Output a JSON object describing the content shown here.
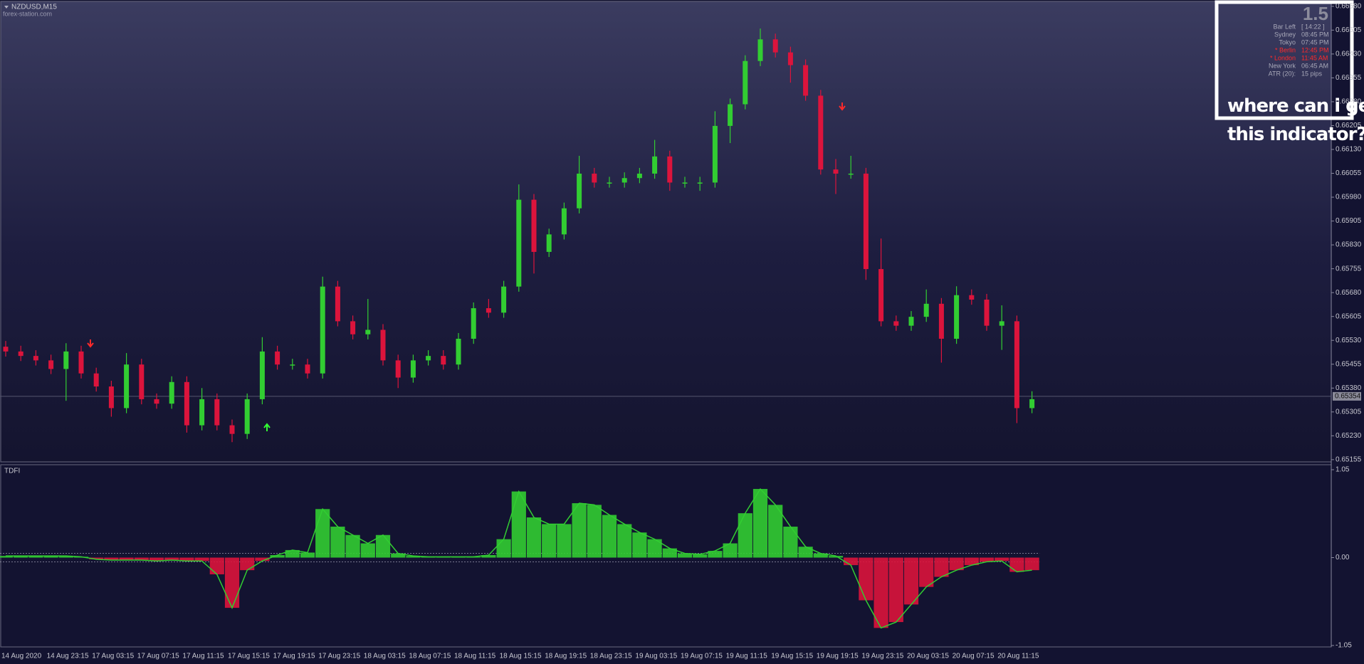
{
  "chart_data": [
    {
      "type": "candlestick",
      "title": "NZDUSD,M15",
      "watermark": "forex-station.com",
      "categories": [
        "14 Aug 2020",
        null,
        null,
        "14 Aug 23:15",
        null,
        null,
        "17 Aug 03:15",
        null,
        null,
        "17 Aug 07:15",
        null,
        null,
        "17 Aug 11:15",
        null,
        null,
        "17 Aug 15:15",
        null,
        null,
        "17 Aug 19:15",
        null,
        null,
        "17 Aug 23:15",
        null,
        null,
        "18 Aug 03:15",
        null,
        null,
        "18 Aug 07:15",
        null,
        null,
        "18 Aug 11:15",
        null,
        null,
        "18 Aug 15:15",
        null,
        null,
        "18 Aug 19:15",
        null,
        null,
        "18 Aug 23:15",
        null,
        null,
        "19 Aug 03:15",
        null,
        null,
        "19 Aug 07:15",
        null,
        null,
        "19 Aug 11:15",
        null,
        null,
        "19 Aug 15:15",
        null,
        null,
        "19 Aug 19:15",
        null,
        null,
        "19 Aug 23:15",
        null,
        null,
        "20 Aug 03:15",
        null,
        null,
        "20 Aug 07:15",
        null,
        null,
        "20 Aug 11:15",
        null,
        null
      ],
      "open": [
        0.6551,
        0.65495,
        0.65481,
        0.65467,
        0.6544,
        0.65495,
        0.65426,
        0.65385,
        0.65317,
        0.65454,
        0.65345,
        0.65331,
        0.65399,
        0.65263,
        0.65345,
        0.65263,
        0.65236,
        0.65345,
        0.65495,
        0.65454,
        0.65454,
        0.65426,
        0.65699,
        0.6559,
        0.65549,
        0.65563,
        0.65467,
        0.65413,
        0.65467,
        0.65481,
        0.65454,
        0.65535,
        0.65631,
        0.65617,
        0.65699,
        0.65972,
        0.65808,
        0.65863,
        0.65945,
        0.66054,
        0.66026,
        0.66026,
        0.6604,
        0.66054,
        0.66108,
        0.66026,
        0.66026,
        0.66026,
        0.66204,
        0.66272,
        0.66408,
        0.66476,
        0.66435,
        0.66395,
        0.66299,
        0.66067,
        0.66054,
        0.66054,
        0.65754,
        0.6559,
        0.65576,
        0.65604,
        0.65645,
        0.65535,
        0.65672,
        0.65658,
        0.65576,
        0.6559,
        0.65317
      ],
      "high": [
        0.65528,
        0.65513,
        0.65499,
        0.65485,
        0.65521,
        0.65513,
        0.65444,
        0.65403,
        0.6549,
        0.65472,
        0.65363,
        0.65417,
        0.65417,
        0.6538,
        0.65363,
        0.65281,
        0.65363,
        0.6554,
        0.65513,
        0.65472,
        0.65472,
        0.6573,
        0.65717,
        0.65608,
        0.6566,
        0.65581,
        0.65485,
        0.65485,
        0.65499,
        0.65499,
        0.65553,
        0.65649,
        0.6566,
        0.65717,
        0.6602,
        0.6599,
        0.65881,
        0.65963,
        0.6611,
        0.66072,
        0.66044,
        0.66058,
        0.66072,
        0.6616,
        0.66126,
        0.66044,
        0.66044,
        0.6625,
        0.6629,
        0.66426,
        0.6651,
        0.66494,
        0.66453,
        0.66413,
        0.66317,
        0.661,
        0.6611,
        0.66072,
        0.6585,
        0.65608,
        0.65622,
        0.6569,
        0.65663,
        0.657,
        0.6569,
        0.65676,
        0.6564,
        0.65608,
        0.6537
      ],
      "low": [
        0.65479,
        0.65465,
        0.65451,
        0.65424,
        0.6534,
        0.6541,
        0.65369,
        0.6529,
        0.65301,
        0.65329,
        0.65315,
        0.65315,
        0.6524,
        0.65247,
        0.65247,
        0.6521,
        0.6522,
        0.65329,
        0.65438,
        0.65438,
        0.6541,
        0.6541,
        0.65574,
        0.65533,
        0.65533,
        0.65451,
        0.6538,
        0.65397,
        0.65451,
        0.65438,
        0.65438,
        0.65519,
        0.65601,
        0.65601,
        0.65683,
        0.6574,
        0.65792,
        0.65847,
        0.65929,
        0.6601,
        0.6601,
        0.6601,
        0.66024,
        0.66038,
        0.66,
        0.6601,
        0.66,
        0.6601,
        0.6615,
        0.66256,
        0.66392,
        0.66419,
        0.6634,
        0.66283,
        0.66051,
        0.6599,
        0.66038,
        0.6572,
        0.65574,
        0.6556,
        0.6556,
        0.65588,
        0.6546,
        0.65519,
        0.65642,
        0.6556,
        0.655,
        0.6527,
        0.65301
      ],
      "close": [
        0.65495,
        0.65481,
        0.65467,
        0.6544,
        0.65495,
        0.65426,
        0.65385,
        0.65317,
        0.65454,
        0.65345,
        0.65331,
        0.65399,
        0.65263,
        0.65345,
        0.65263,
        0.65236,
        0.65345,
        0.65495,
        0.65454,
        0.65454,
        0.65426,
        0.65699,
        0.6559,
        0.65549,
        0.65563,
        0.65467,
        0.65413,
        0.65467,
        0.65481,
        0.65454,
        0.65535,
        0.65631,
        0.65617,
        0.65699,
        0.65972,
        0.65808,
        0.65863,
        0.65945,
        0.66054,
        0.66026,
        0.66026,
        0.6604,
        0.66054,
        0.66108,
        0.66026,
        0.66026,
        0.66026,
        0.66204,
        0.66272,
        0.66408,
        0.66476,
        0.66435,
        0.66395,
        0.66299,
        0.66067,
        0.66054,
        0.66054,
        0.65754,
        0.6559,
        0.65576,
        0.65604,
        0.65645,
        0.65535,
        0.65672,
        0.65658,
        0.65576,
        0.6559,
        0.65317,
        0.65345
      ],
      "up_color": "#32cd32",
      "down_color": "#dc143c",
      "ylim": [
        0.65148,
        0.66593
      ],
      "yticks": [
        0.65155,
        {
          "value": 0.6523,
          "label": "0.65230"
        },
        0.65305,
        {
          "value": 0.6538,
          "label": "0.65380"
        },
        0.65455,
        {
          "value": 0.6553,
          "label": "0.65530"
        },
        0.65605,
        {
          "value": 0.6568,
          "label": "0.65680"
        },
        0.65755,
        {
          "value": 0.6583,
          "label": "0.65830"
        },
        0.65905,
        {
          "value": 0.6598,
          "label": "0.65980"
        },
        0.66055,
        {
          "value": 0.6613,
          "label": "0.66130"
        },
        0.66205,
        {
          "value": 0.6628,
          "label": "0.66280"
        },
        0.66355,
        {
          "value": 0.6643,
          "label": "0.66430"
        },
        0.66505,
        {
          "value": 0.6658,
          "label": "0.66580"
        }
      ],
      "last_price": 0.65354,
      "grid": false
    },
    {
      "type": "indicator",
      "title": "TDFI",
      "values": [
        0.02,
        0.02,
        0.02,
        0.02,
        0.02,
        0.01,
        -0.02,
        -0.03,
        -0.03,
        -0.03,
        -0.04,
        -0.03,
        -0.04,
        -0.04,
        -0.2,
        -0.6,
        -0.15,
        -0.04,
        0.03,
        0.09,
        0.06,
        0.58,
        0.37,
        0.27,
        0.17,
        0.27,
        0.05,
        0.02,
        0.01,
        0.01,
        0.01,
        0.01,
        0.03,
        0.22,
        0.79,
        0.48,
        0.4,
        0.4,
        0.65,
        0.63,
        0.51,
        0.4,
        0.3,
        0.22,
        0.11,
        0.05,
        0.04,
        0.08,
        0.17,
        0.53,
        0.82,
        0.63,
        0.37,
        0.13,
        0.05,
        0.02,
        -0.09,
        -0.51,
        -0.84,
        -0.77,
        -0.56,
        -0.35,
        -0.23,
        -0.15,
        -0.09,
        -0.05,
        -0.04,
        -0.17,
        -0.15
      ],
      "pos_color": "#32cd32",
      "neg_color": "#dc143c",
      "ylim": [
        -1.05,
        1.05
      ],
      "yticks": [
        1.05,
        {
          "value": 0,
          "label": "0.00"
        },
        -1.05
      ],
      "levels": [
        0.05,
        -0.05
      ]
    }
  ],
  "info_panel": {
    "big": "1.5",
    "rows": [
      [
        "Bar Left",
        "[ 14:22 ]"
      ],
      [
        "Sydney",
        "08:45 PM"
      ],
      [
        "Tokyo",
        "07:45 PM"
      ],
      [
        "* Berlin",
        "12:45 PM"
      ],
      [
        "* London",
        "11:45 AM"
      ],
      [
        "New York",
        "06:45 AM"
      ],
      [
        "ATR (20):",
        "15 pips"
      ]
    ]
  },
  "annotation": [
    "where can i get",
    "this indicator?"
  ]
}
